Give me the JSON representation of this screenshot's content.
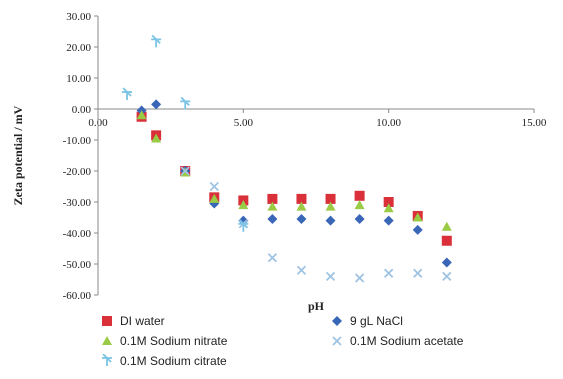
{
  "chart_data": {
    "type": "scatter",
    "xlabel": "pH",
    "ylabel": "Zeta potential / mV",
    "xlim": [
      0,
      15
    ],
    "ylim": [
      -60,
      30
    ],
    "x_ticks": [
      "0.00",
      "5.00",
      "10.00",
      "15.00"
    ],
    "x_tick_values": [
      0,
      5,
      10,
      15
    ],
    "y_ticks": [
      "30.00",
      "20.00",
      "10.00",
      "0.00",
      "-10.00",
      "-20.00",
      "-30.00",
      "-40.00",
      "-50.00",
      "-60.00"
    ],
    "y_tick_values": [
      30,
      20,
      10,
      0,
      -10,
      -20,
      -30,
      -40,
      -50,
      -60
    ],
    "grid": false,
    "legend_position": "bottom",
    "series": [
      {
        "name": "DI water",
        "marker": "square",
        "color": "#d9303a",
        "points": [
          [
            1.5,
            -2.5
          ],
          [
            2.0,
            -8.5
          ],
          [
            3.0,
            -20.0
          ],
          [
            4.0,
            -28.5
          ],
          [
            5.0,
            -29.5
          ],
          [
            6.0,
            -29.0
          ],
          [
            7.0,
            -29.0
          ],
          [
            8.0,
            -29.0
          ],
          [
            9.0,
            -28.0
          ],
          [
            10.0,
            -30.0
          ],
          [
            11.0,
            -34.5
          ],
          [
            12.0,
            -42.5
          ]
        ]
      },
      {
        "name": "9 gL NaCl",
        "marker": "diamond",
        "color": "#3a66b8",
        "points": [
          [
            1.5,
            -0.5
          ],
          [
            2.0,
            1.5
          ],
          [
            3.0,
            -20.0
          ],
          [
            4.0,
            -30.5
          ],
          [
            5.0,
            -36.0
          ],
          [
            6.0,
            -35.5
          ],
          [
            7.0,
            -35.5
          ],
          [
            8.0,
            -36.0
          ],
          [
            9.0,
            -35.5
          ],
          [
            10.0,
            -36.0
          ],
          [
            11.0,
            -39.0
          ],
          [
            12.0,
            -49.5
          ]
        ]
      },
      {
        "name": "0.1M Sodium nitrate",
        "marker": "triangle",
        "color": "#9acb45",
        "points": [
          [
            1.5,
            -2.0
          ],
          [
            2.0,
            -9.5
          ],
          [
            3.0,
            -20.5
          ],
          [
            4.0,
            -29.0
          ],
          [
            5.0,
            -31.0
          ],
          [
            6.0,
            -31.5
          ],
          [
            7.0,
            -31.5
          ],
          [
            8.0,
            -31.5
          ],
          [
            9.0,
            -31.0
          ],
          [
            10.0,
            -32.0
          ],
          [
            11.0,
            -35.0
          ],
          [
            12.0,
            -38.0
          ]
        ]
      },
      {
        "name": "0.1M Sodium acetate",
        "marker": "x",
        "color": "#9fc3e3",
        "points": [
          [
            3.0,
            -20.0
          ],
          [
            4.0,
            -25.0
          ],
          [
            5.0,
            -37.0
          ],
          [
            6.0,
            -48.0
          ],
          [
            7.0,
            -52.0
          ],
          [
            8.0,
            -54.0
          ],
          [
            9.0,
            -54.5
          ],
          [
            10.0,
            -53.0
          ],
          [
            11.0,
            -53.0
          ],
          [
            12.0,
            -54.0
          ]
        ]
      },
      {
        "name": "0.1M Sodium citrate",
        "marker": "star",
        "color": "#7cc4e6",
        "points": [
          [
            1.0,
            4.5
          ],
          [
            2.0,
            21.5
          ],
          [
            3.0,
            1.5
          ],
          [
            5.0,
            -38.0
          ]
        ]
      }
    ]
  }
}
